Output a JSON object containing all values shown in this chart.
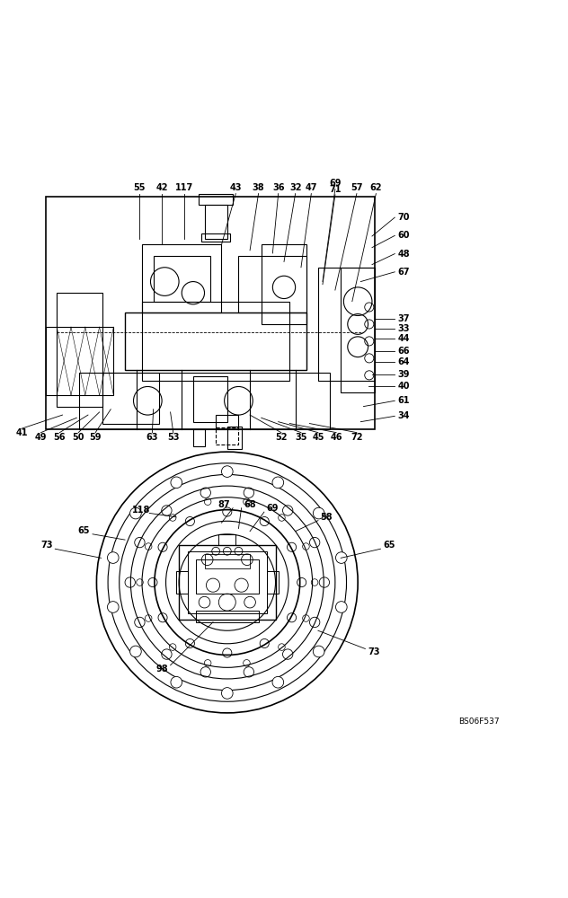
{
  "bg_color": "#ffffff",
  "line_color": "#000000",
  "fig_width": 6.32,
  "fig_height": 10.0,
  "dpi": 100,
  "watermark": "BS06F537"
}
